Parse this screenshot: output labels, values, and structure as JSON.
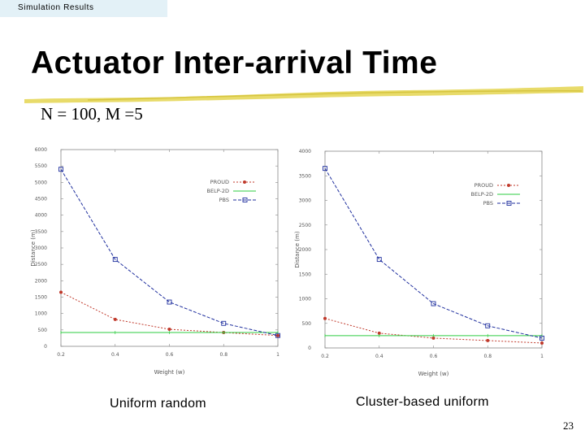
{
  "header": {
    "section": "Simulation Results"
  },
  "slide": {
    "title": "Actuator Inter-arrival Time",
    "params": "N = 100, M =5",
    "page_number": "23"
  },
  "captions": {
    "left": "Uniform random",
    "right": "Cluster-based uniform"
  },
  "colors": {
    "title_underline": "#e6d75a",
    "section_tag_bg": "#e3f1f7",
    "PROUD": "#c0392b",
    "BELP-2D": "#2ecc40",
    "PBS": "#1f2f9e"
  },
  "chart_data": [
    {
      "type": "line",
      "xlabel": "Weight (w)",
      "ylabel": "Distance (m)",
      "xlim": [
        0.2,
        1
      ],
      "ylim": [
        0,
        6000
      ],
      "xticks": [
        "0.2",
        "0.4",
        "0.6",
        "0.8",
        "1"
      ],
      "yticks": [
        "0",
        "500",
        "1000",
        "1500",
        "2000",
        "2500",
        "3000",
        "3500",
        "4000",
        "4500",
        "5000",
        "5500",
        "6000"
      ],
      "x": [
        0.2,
        0.4,
        0.6,
        0.8,
        1.0
      ],
      "legend_position": "top-right",
      "grid": false,
      "series": [
        {
          "name": "PROUD",
          "values": [
            1650,
            820,
            520,
            420,
            330
          ],
          "color": "#c0392b",
          "marker": "diamond"
        },
        {
          "name": "BELP-2D",
          "values": [
            420,
            420,
            420,
            420,
            420
          ],
          "color": "#2ecc40",
          "marker": "none"
        },
        {
          "name": "PBS",
          "values": [
            5400,
            2650,
            1350,
            700,
            330
          ],
          "color": "#1f2f9e",
          "marker": "square"
        }
      ]
    },
    {
      "type": "line",
      "xlabel": "Weight (w)",
      "ylabel": "Distance (m)",
      "xlim": [
        0.2,
        1
      ],
      "ylim": [
        0,
        4000
      ],
      "xticks": [
        "0.2",
        "0.4",
        "0.6",
        "0.8",
        "1"
      ],
      "yticks": [
        "0",
        "500",
        "1000",
        "1500",
        "2000",
        "2500",
        "3000",
        "3500",
        "4000"
      ],
      "x": [
        0.2,
        0.4,
        0.6,
        0.8,
        1.0
      ],
      "legend_position": "top-right",
      "grid": false,
      "series": [
        {
          "name": "PROUD",
          "values": [
            600,
            300,
            200,
            150,
            100
          ],
          "color": "#c0392b",
          "marker": "diamond"
        },
        {
          "name": "BELP-2D",
          "values": [
            250,
            250,
            250,
            250,
            250
          ],
          "color": "#2ecc40",
          "marker": "none"
        },
        {
          "name": "PBS",
          "values": [
            3650,
            1800,
            900,
            450,
            200
          ],
          "color": "#1f2f9e",
          "marker": "square"
        }
      ]
    }
  ]
}
